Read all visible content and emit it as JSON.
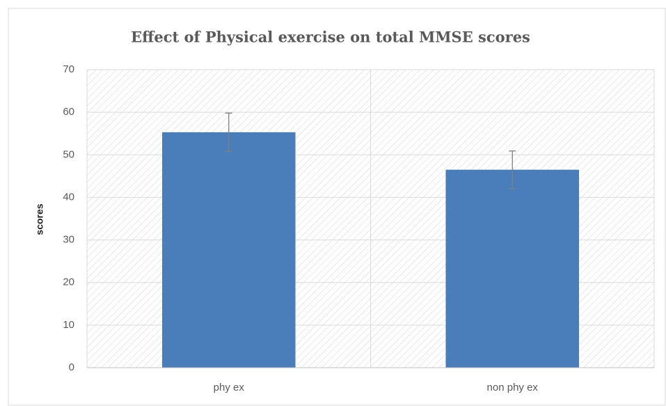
{
  "chart_data": {
    "type": "bar",
    "title": "Effect of Physical exercise on total MMSE scores",
    "y_label": "scores",
    "categories": [
      "phy ex",
      "non phy ex"
    ],
    "values": [
      55.3,
      46.5
    ],
    "errors": [
      4.5,
      4.4
    ],
    "color": "#4a7ebb",
    "ylim": [
      0,
      70
    ],
    "yticks": [
      0,
      10,
      20,
      30,
      40,
      50,
      60,
      70
    ],
    "grid": true
  }
}
